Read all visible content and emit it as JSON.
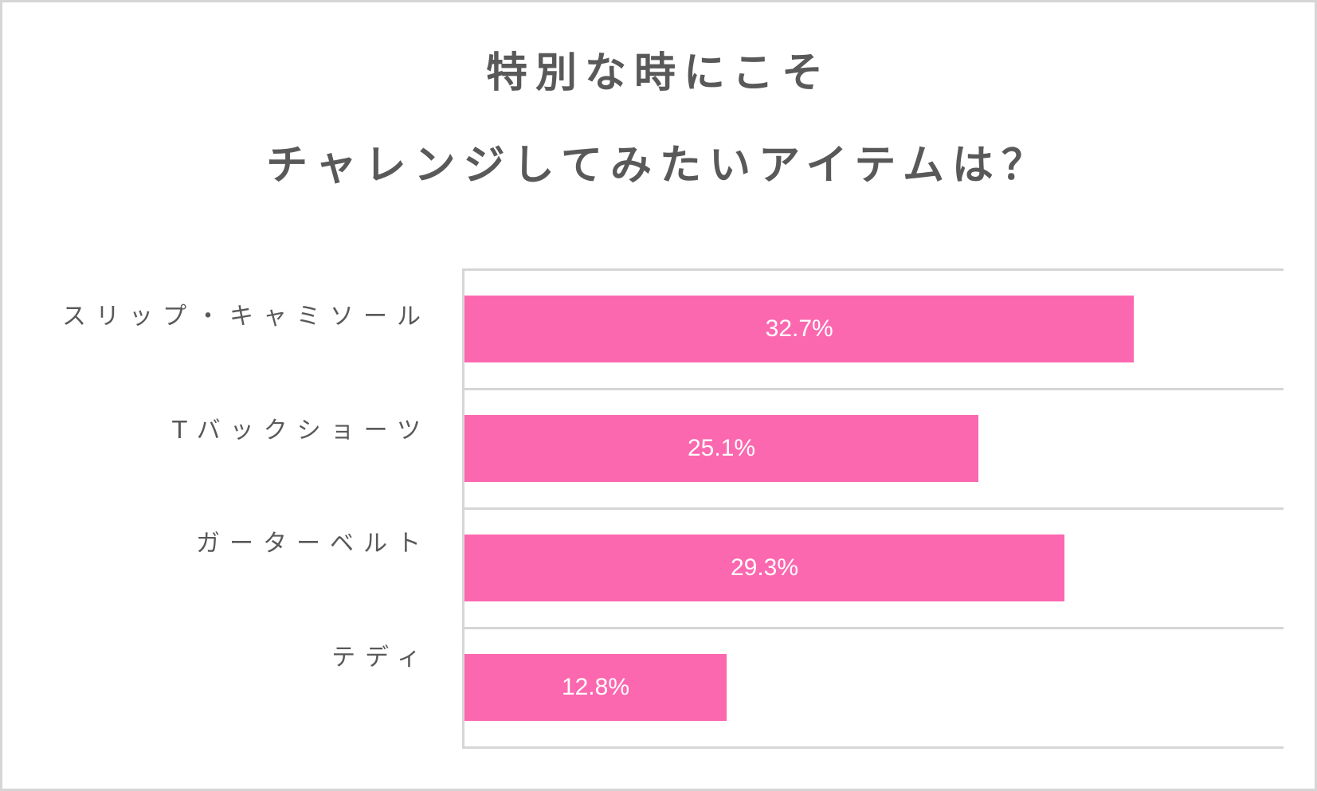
{
  "title": {
    "line1": "特別な時にこそ",
    "line2": "チャレンジしてみたいアイテムは？"
  },
  "colors": {
    "bar": "#fc68af",
    "grid": "#d6d6d6",
    "text": "#595959",
    "frame": "#d6d6d6"
  },
  "chart_data": {
    "type": "bar",
    "orientation": "horizontal",
    "title": "特別な時にこそ チャレンジしてみたいアイテムは？",
    "categories": [
      "スリップ・キャミソール",
      "Tバックショーツ",
      "ガーターベルト",
      "テディ"
    ],
    "values": [
      32.7,
      25.1,
      29.3,
      12.8
    ],
    "value_labels": [
      "32.7%",
      "25.1%",
      "29.3%",
      "12.8%"
    ],
    "unit": "%",
    "xlabel": "",
    "ylabel": "",
    "xlim": [
      0,
      40
    ],
    "grid": true,
    "legend": "none",
    "data_labels": "inside-center"
  },
  "bars": [
    {
      "label": "スリップ・キャミソール",
      "value": 32.7,
      "text": "32.7%"
    },
    {
      "label": "Tバックショーツ",
      "value": 25.1,
      "text": "25.1%"
    },
    {
      "label": "ガーターベルト",
      "value": 29.3,
      "text": "29.3%"
    },
    {
      "label": "テディ",
      "value": 12.8,
      "text": "12.8%"
    }
  ]
}
